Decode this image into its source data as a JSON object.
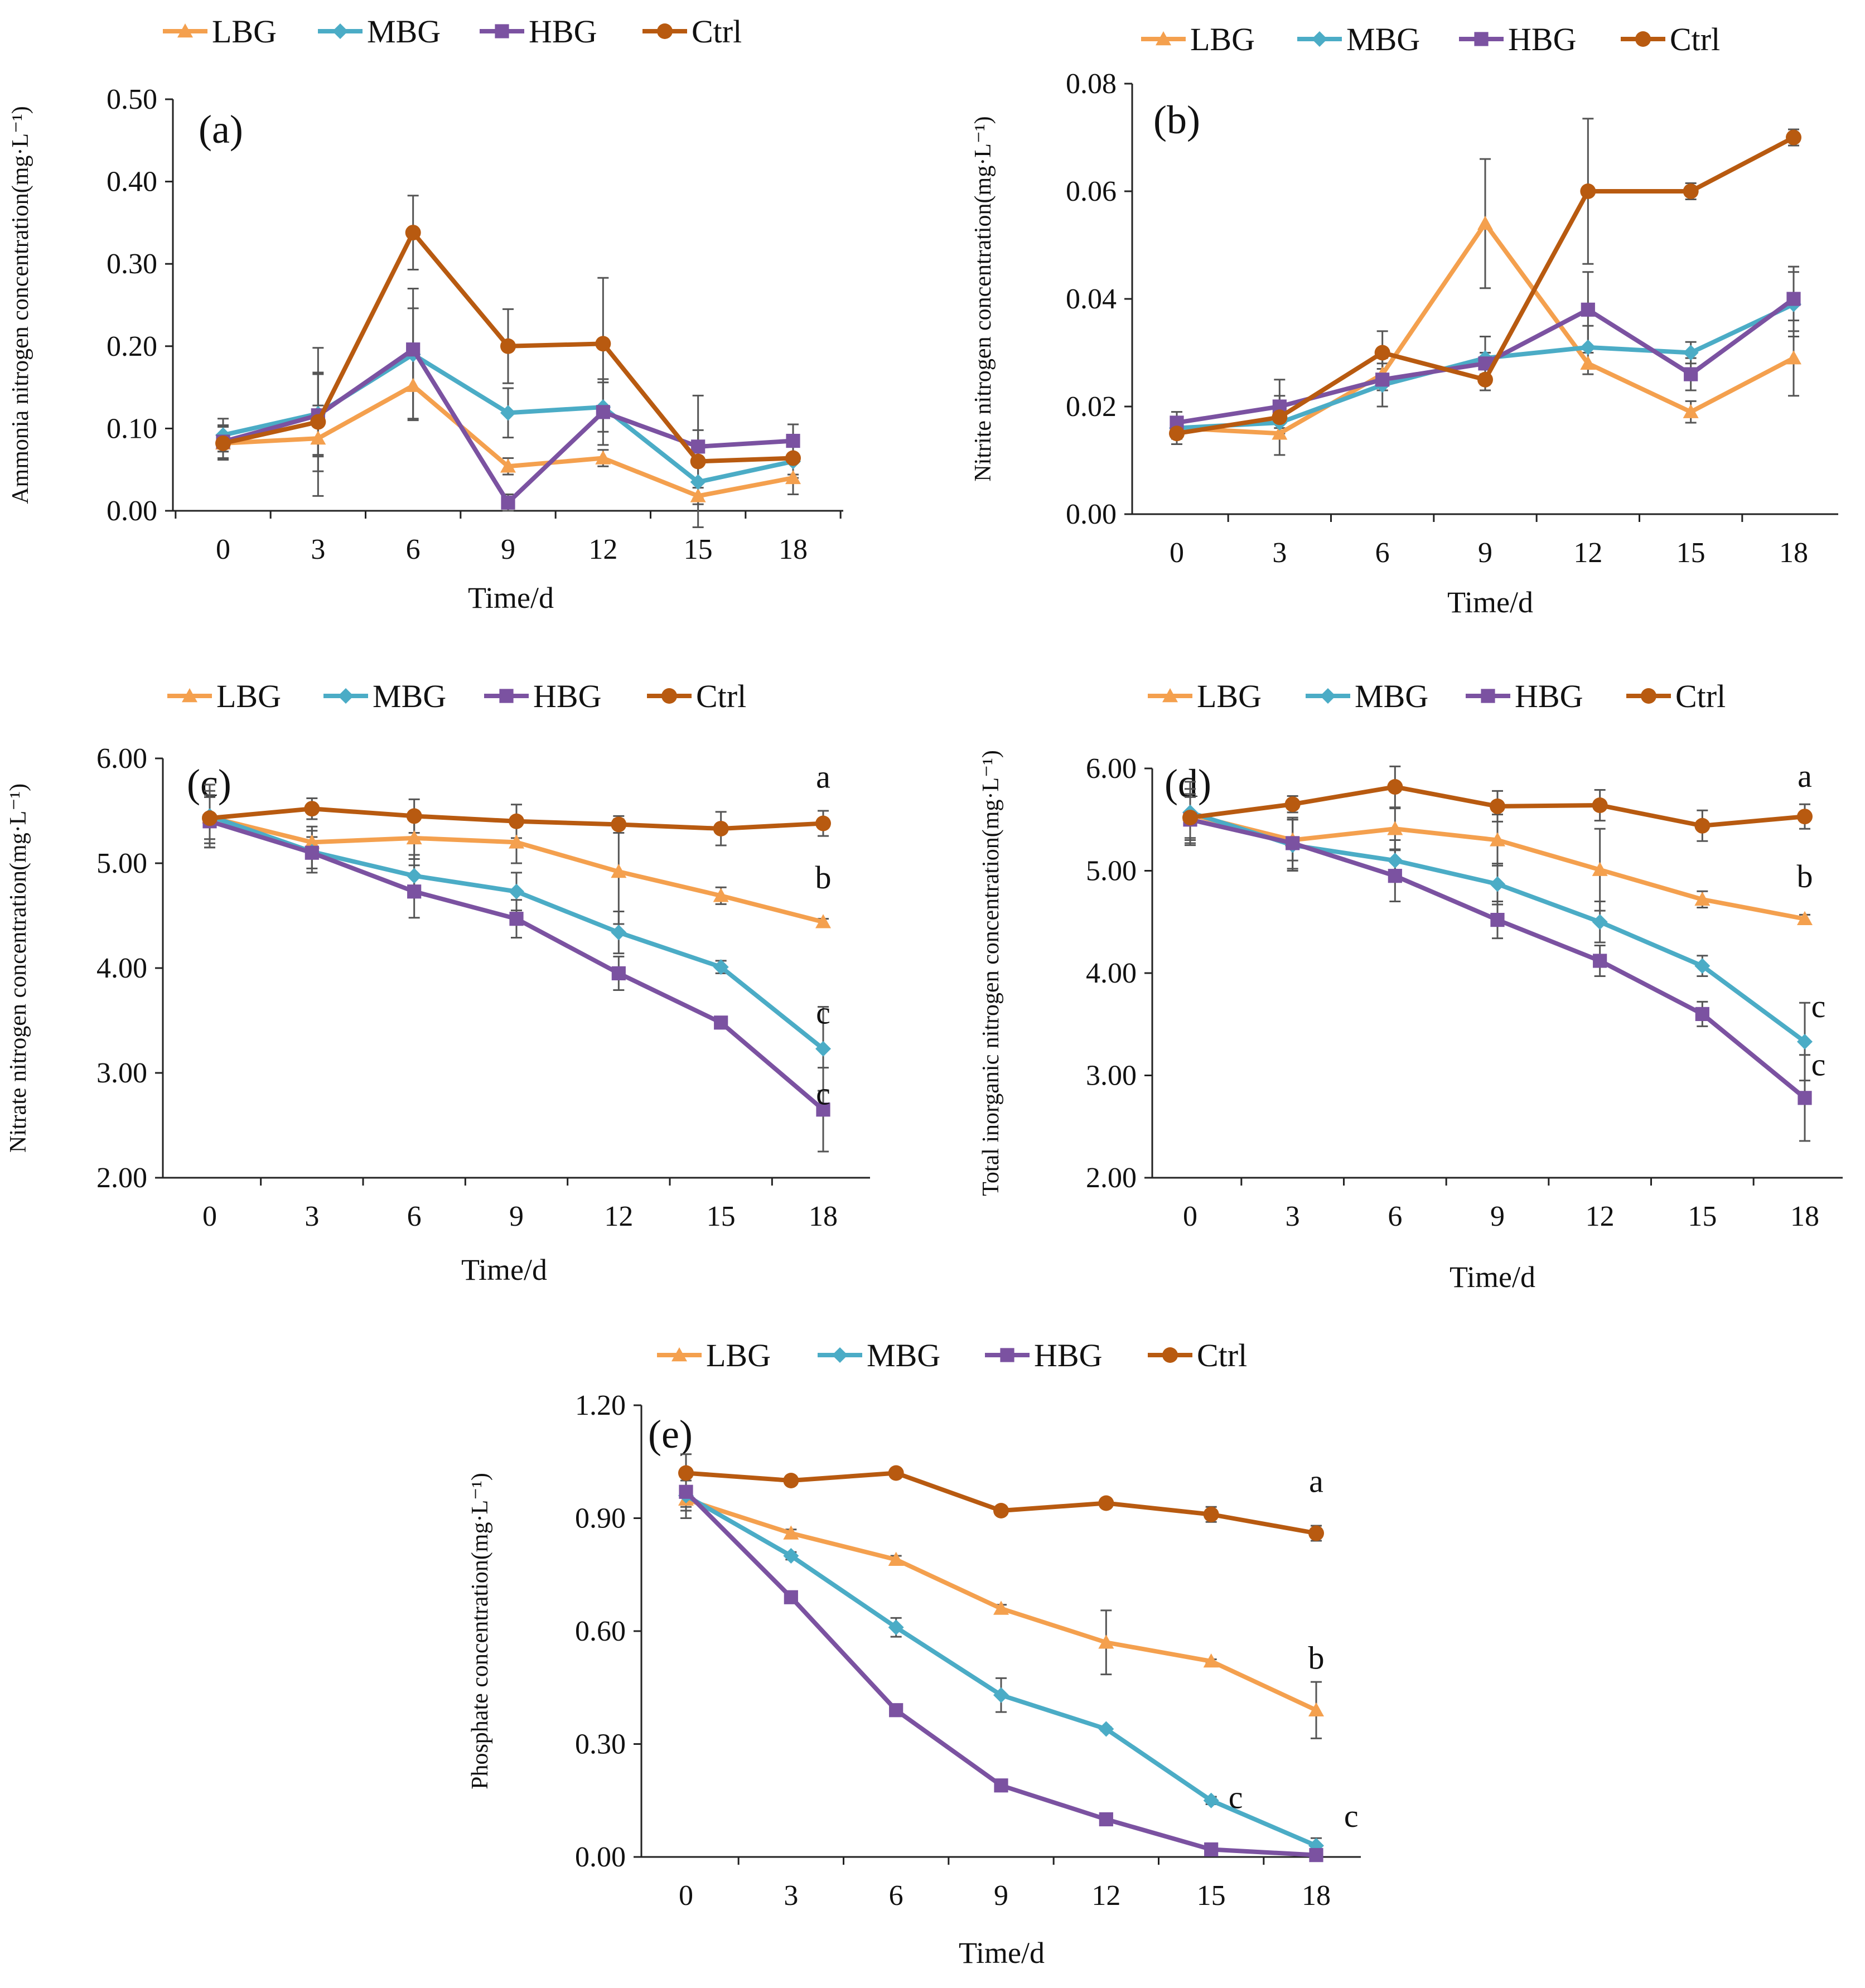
{
  "colors": {
    "LBG": "#f4a04e",
    "MBG": "#4bacc6",
    "HBG": "#7b52a1",
    "Ctrl": "#b85a10",
    "axis": "#222222",
    "error": "#555555"
  },
  "legend": [
    {
      "key": "LBG",
      "label": "LBG",
      "marker": "triangle"
    },
    {
      "key": "MBG",
      "label": "MBG",
      "marker": "diamond"
    },
    {
      "key": "HBG",
      "label": "HBG",
      "marker": "square"
    },
    {
      "key": "Ctrl",
      "label": "Ctrl",
      "marker": "circle"
    }
  ],
  "chart_data": [
    {
      "type": "line",
      "panel": "(a)",
      "xlabel": "Time/d",
      "ylabel": "Ammonia nitrogen concentration(mg·L⁻¹)",
      "x": [
        0,
        3,
        6,
        9,
        12,
        15,
        18
      ],
      "ylim": [
        0,
        0.5
      ],
      "yticks": [
        "0.00",
        "0.10",
        "0.20",
        "0.30",
        "0.40",
        "0.50"
      ],
      "series": [
        {
          "name": "LBG",
          "values": [
            0.082,
            0.088,
            0.152,
            0.054,
            0.064,
            0.018,
            0.04
          ],
          "errors": [
            0.01,
            0.04,
            0.04,
            0.01,
            0.01,
            0.01,
            0.02
          ]
        },
        {
          "name": "MBG",
          "values": [
            0.092,
            0.118,
            0.19,
            0.119,
            0.126,
            0.035,
            0.06
          ],
          "errors": [
            0.02,
            0.05,
            0.08,
            0.03,
            0.03,
            0.02,
            0.02
          ]
        },
        {
          "name": "HBG",
          "values": [
            0.084,
            0.116,
            0.196,
            0.01,
            0.12,
            0.078,
            0.085
          ],
          "errors": [
            0.02,
            0.05,
            0.05,
            0.01,
            0.04,
            0.02,
            0.02
          ]
        },
        {
          "name": "Ctrl",
          "values": [
            0.082,
            0.108,
            0.338,
            0.2,
            0.203,
            0.06,
            0.064
          ],
          "errors": [
            0.02,
            0.09,
            0.045,
            0.045,
            0.08,
            0.08,
            0.02
          ]
        }
      ],
      "annotations": []
    },
    {
      "type": "line",
      "panel": "(b)",
      "xlabel": "Time/d",
      "ylabel": "Nitrite nitrogen concentration(mg·L⁻¹)",
      "x": [
        0,
        3,
        6,
        9,
        12,
        15,
        18
      ],
      "ylim": [
        0,
        0.08
      ],
      "yticks": [
        "0.00",
        "0.02",
        "0.04",
        "0.06",
        "0.08"
      ],
      "series": [
        {
          "name": "LBG",
          "values": [
            0.016,
            0.015,
            0.026,
            0.054,
            0.028,
            0.019,
            0.029
          ],
          "errors": [
            0.001,
            0.001,
            0.003,
            0.012,
            0.002,
            0.002,
            0.007
          ]
        },
        {
          "name": "MBG",
          "values": [
            0.016,
            0.017,
            0.024,
            0.029,
            0.031,
            0.03,
            0.039
          ],
          "errors": [
            0.002,
            0.002,
            0.004,
            0.004,
            0.004,
            0.002,
            0.006
          ]
        },
        {
          "name": "HBG",
          "values": [
            0.017,
            0.02,
            0.025,
            0.028,
            0.038,
            0.026,
            0.04
          ],
          "errors": [
            0.002,
            0.002,
            0.002,
            0.002,
            0.007,
            0.003,
            0.006
          ]
        },
        {
          "name": "Ctrl",
          "values": [
            0.015,
            0.018,
            0.03,
            0.025,
            0.06,
            0.06,
            0.07
          ],
          "errors": [
            0.002,
            0.007,
            0.004,
            0.002,
            0.0135,
            0.0015,
            0.0015
          ]
        }
      ],
      "annotations": []
    },
    {
      "type": "line",
      "panel": "(c)",
      "xlabel": "Time/d",
      "ylabel": "Nitrate nitrogen concentration(mg·L⁻¹)",
      "x": [
        0,
        3,
        6,
        9,
        12,
        15,
        18
      ],
      "ylim": [
        2,
        6
      ],
      "yticks": [
        "2.00",
        "3.00",
        "4.00",
        "5.00",
        "6.00"
      ],
      "series": [
        {
          "name": "LBG",
          "values": [
            5.44,
            5.2,
            5.24,
            5.2,
            4.92,
            4.69,
            4.44
          ],
          "errors": [
            0.25,
            0.15,
            0.2,
            0.2,
            0.5,
            0.08,
            0.03
          ]
        },
        {
          "name": "MBG",
          "values": [
            5.45,
            5.11,
            4.88,
            4.73,
            4.34,
            4.01,
            3.23
          ],
          "errors": [
            0.3,
            0.2,
            0.2,
            0.18,
            0.2,
            0.06,
            0.4
          ]
        },
        {
          "name": "HBG",
          "values": [
            5.4,
            5.1,
            4.73,
            4.47,
            3.95,
            3.48,
            2.65
          ],
          "errors": [
            0.25,
            0.15,
            0.25,
            0.18,
            0.16,
            0.03,
            0.4
          ]
        },
        {
          "name": "Ctrl",
          "values": [
            5.43,
            5.52,
            5.45,
            5.4,
            5.37,
            5.33,
            5.38
          ],
          "errors": [
            0.2,
            0.1,
            0.16,
            0.16,
            0.08,
            0.16,
            0.12
          ]
        }
      ],
      "annotations": [
        {
          "text": "a",
          "x": 18,
          "y": 5.72
        },
        {
          "text": "b",
          "x": 18,
          "y": 4.76
        },
        {
          "text": "c",
          "x": 18,
          "y": 3.47
        },
        {
          "text": "c",
          "x": 18,
          "y": 2.7
        }
      ]
    },
    {
      "type": "line",
      "panel": "(d)",
      "xlabel": "Time/d",
      "ylabel": "Total inorganic nitrogen concentration(mg·L⁻¹)",
      "x": [
        0,
        3,
        6,
        9,
        12,
        15,
        18
      ],
      "ylim": [
        2,
        6
      ],
      "yticks": [
        "2.00",
        "3.00",
        "4.00",
        "5.00",
        "6.00"
      ],
      "series": [
        {
          "name": "LBG",
          "values": [
            5.55,
            5.3,
            5.41,
            5.3,
            5.01,
            4.72,
            4.53
          ],
          "errors": [
            0.25,
            0.2,
            0.2,
            0.25,
            0.4,
            0.08,
            0.04
          ]
        },
        {
          "name": "MBG",
          "values": [
            5.57,
            5.25,
            5.1,
            4.87,
            4.5,
            4.07,
            3.33
          ],
          "errors": [
            0.3,
            0.25,
            0.2,
            0.2,
            0.2,
            0.1,
            0.38
          ]
        },
        {
          "name": "HBG",
          "values": [
            5.5,
            5.27,
            4.95,
            4.52,
            4.12,
            3.6,
            2.78
          ],
          "errors": [
            0.25,
            0.25,
            0.25,
            0.18,
            0.15,
            0.12,
            0.42
          ]
        },
        {
          "name": "Ctrl",
          "values": [
            5.52,
            5.65,
            5.82,
            5.63,
            5.64,
            5.44,
            5.53
          ],
          "errors": [
            0.2,
            0.08,
            0.2,
            0.15,
            0.15,
            0.15,
            0.12
          ]
        }
      ],
      "annotations": [
        {
          "text": "a",
          "x": 18,
          "y": 5.82
        },
        {
          "text": "b",
          "x": 18,
          "y": 4.84
        },
        {
          "text": "c",
          "x": 18.4,
          "y": 3.57
        },
        {
          "text": "c",
          "x": 18.4,
          "y": 3.0
        }
      ]
    },
    {
      "type": "line",
      "panel": "(e)",
      "xlabel": "Time/d",
      "ylabel": "Phosphate concentration(mg·L⁻¹)",
      "x": [
        0,
        3,
        6,
        9,
        12,
        15,
        18
      ],
      "ylim": [
        0,
        1.2
      ],
      "yticks": [
        "0.00",
        "0.30",
        "0.60",
        "0.90",
        "1.20"
      ],
      "series": [
        {
          "name": "LBG",
          "values": [
            0.95,
            0.86,
            0.79,
            0.66,
            0.57,
            0.52,
            0.39
          ],
          "errors": [
            0.05,
            0.01,
            0.01,
            0.01,
            0.085,
            0.005,
            0.075
          ]
        },
        {
          "name": "MBG",
          "values": [
            0.96,
            0.8,
            0.61,
            0.43,
            0.34,
            0.15,
            0.03
          ],
          "errors": [
            0.04,
            0.01,
            0.025,
            0.045,
            0.005,
            0.01,
            0.02
          ]
        },
        {
          "name": "HBG",
          "values": [
            0.97,
            0.69,
            0.39,
            0.19,
            0.1,
            0.02,
            0.005
          ],
          "errors": [
            0.04,
            0.005,
            0.005,
            0.005,
            0.005,
            0.005,
            0.005
          ]
        },
        {
          "name": "Ctrl",
          "values": [
            1.02,
            1.0,
            1.02,
            0.92,
            0.94,
            0.91,
            0.86
          ],
          "errors": [
            0.05,
            0.005,
            0.005,
            0.005,
            0.005,
            0.02,
            0.02
          ]
        }
      ],
      "annotations": [
        {
          "text": "a",
          "x": 18,
          "y": 0.97
        },
        {
          "text": "b",
          "x": 18,
          "y": 0.5
        },
        {
          "text": "c",
          "x": 15.7,
          "y": 0.13
        },
        {
          "text": "c",
          "x": 19.0,
          "y": 0.08
        }
      ]
    }
  ]
}
